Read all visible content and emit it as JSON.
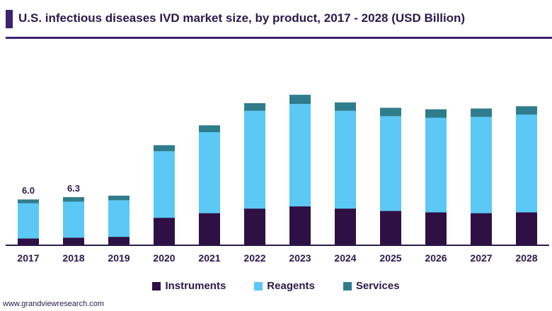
{
  "title": "U.S. infectious diseases IVD market size, by product, 2017 - 2028 (USD Billion)",
  "source": "www.grandviewresearch.com",
  "colors": {
    "instruments": "#2e1045",
    "reagents": "#5bc8f5",
    "services": "#2f7d8c",
    "axis": "#2a1a4a"
  },
  "chart_data": {
    "type": "bar",
    "stacked": true,
    "title": "U.S. infectious diseases IVD market size, by product, 2017 - 2028 (USD Billion)",
    "xlabel": "",
    "ylabel": "",
    "ylim": [
      0,
      26
    ],
    "grid": false,
    "legend_position": "bottom",
    "categories": [
      "2017",
      "2018",
      "2019",
      "2020",
      "2021",
      "2022",
      "2023",
      "2024",
      "2025",
      "2026",
      "2027",
      "2028"
    ],
    "series": [
      {
        "name": "Instruments",
        "values": [
          0.9,
          1.0,
          1.1,
          3.6,
          4.2,
          4.8,
          5.1,
          4.8,
          4.5,
          4.3,
          4.2,
          4.3
        ]
      },
      {
        "name": "Reagents",
        "values": [
          4.6,
          4.7,
          4.8,
          8.7,
          10.6,
          12.8,
          13.4,
          12.8,
          12.4,
          12.4,
          12.6,
          12.8
        ]
      },
      {
        "name": "Services",
        "values": [
          0.5,
          0.6,
          0.6,
          0.8,
          0.9,
          1.0,
          1.2,
          1.1,
          1.1,
          1.1,
          1.1,
          1.1
        ]
      }
    ],
    "data_labels": [
      {
        "category": "2017",
        "text": "6.0"
      },
      {
        "category": "2018",
        "text": "6.3"
      }
    ]
  }
}
